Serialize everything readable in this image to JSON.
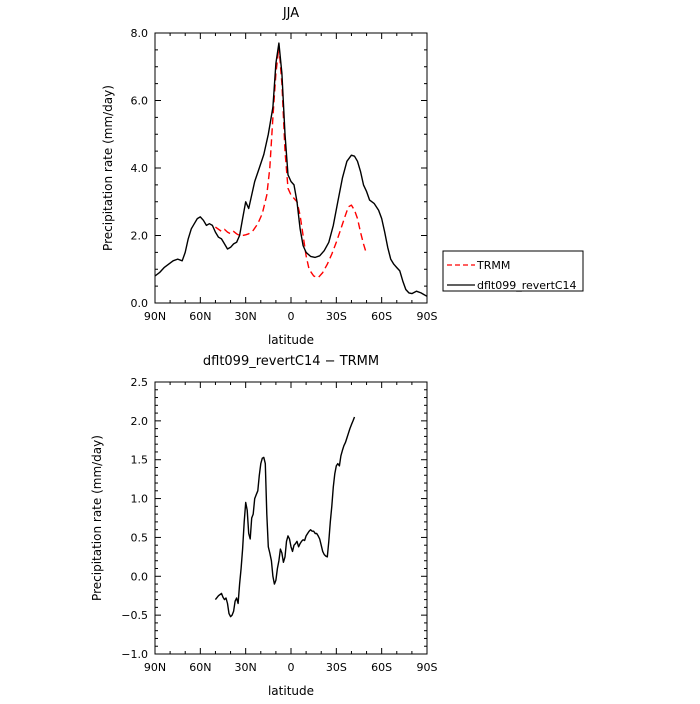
{
  "chart_data": [
    {
      "type": "line",
      "title": "JJA",
      "xlabel": "latitude",
      "ylabel": "Precipitation rate (mm/day)",
      "xlim": [
        90,
        -90
      ],
      "ylim": [
        0,
        8
      ],
      "x_tick_values": [
        90,
        60,
        30,
        0,
        -30,
        -60,
        -90
      ],
      "x_tick_labels": [
        "90N",
        "60N",
        "30N",
        "0",
        "30S",
        "60S",
        "90S"
      ],
      "y_tick_values": [
        0,
        2,
        4,
        6,
        8
      ],
      "y_tick_labels": [
        "0.0",
        "2.0",
        "4.0",
        "6.0",
        "8.0"
      ],
      "legend": {
        "placement": "right",
        "entries": [
          "TRMM",
          "dflt099_revertC14"
        ]
      },
      "series": [
        {
          "name": "TRMM",
          "color": "#ff0000",
          "style": "dashed",
          "points": [
            [
              50,
              2.25
            ],
            [
              46,
              2.12
            ],
            [
              44,
              2.18
            ],
            [
              42,
              2.1
            ],
            [
              40,
              2.05
            ],
            [
              38,
              2.12
            ],
            [
              36,
              2.05
            ],
            [
              34,
              2.0
            ],
            [
              32,
              2.0
            ],
            [
              30,
              2.02
            ],
            [
              28,
              2.05
            ],
            [
              25,
              2.15
            ],
            [
              22,
              2.35
            ],
            [
              19,
              2.65
            ],
            [
              16,
              3.2
            ],
            [
              14,
              4.0
            ],
            [
              12,
              5.5
            ],
            [
              10,
              6.8
            ],
            [
              8,
              7.6
            ],
            [
              6,
              6.5
            ],
            [
              4,
              4.5
            ],
            [
              2,
              3.4
            ],
            [
              0,
              3.2
            ],
            [
              -2,
              3.1
            ],
            [
              -4,
              3.0
            ],
            [
              -6,
              2.6
            ],
            [
              -8,
              2.0
            ],
            [
              -10,
              1.4
            ],
            [
              -12,
              1.0
            ],
            [
              -15,
              0.8
            ],
            [
              -18,
              0.75
            ],
            [
              -21,
              0.9
            ],
            [
              -24,
              1.15
            ],
            [
              -27,
              1.45
            ],
            [
              -30,
              1.8
            ],
            [
              -33,
              2.2
            ],
            [
              -36,
              2.6
            ],
            [
              -38,
              2.85
            ],
            [
              -40,
              2.9
            ],
            [
              -42,
              2.75
            ],
            [
              -44,
              2.5
            ],
            [
              -46,
              2.1
            ],
            [
              -48,
              1.75
            ],
            [
              -50,
              1.45
            ]
          ]
        },
        {
          "name": "dflt099_revertC14",
          "color": "#000000",
          "style": "solid",
          "points": [
            [
              90,
              0.8
            ],
            [
              87,
              0.9
            ],
            [
              84,
              1.05
            ],
            [
              81,
              1.15
            ],
            [
              78,
              1.25
            ],
            [
              75,
              1.3
            ],
            [
              72,
              1.25
            ],
            [
              70,
              1.5
            ],
            [
              68,
              1.9
            ],
            [
              66,
              2.2
            ],
            [
              64,
              2.35
            ],
            [
              62,
              2.5
            ],
            [
              60,
              2.55
            ],
            [
              58,
              2.45
            ],
            [
              56,
              2.3
            ],
            [
              54,
              2.35
            ],
            [
              52,
              2.3
            ],
            [
              50,
              2.1
            ],
            [
              48,
              1.95
            ],
            [
              46,
              1.9
            ],
            [
              44,
              1.75
            ],
            [
              42,
              1.6
            ],
            [
              40,
              1.65
            ],
            [
              38,
              1.75
            ],
            [
              36,
              1.8
            ],
            [
              34,
              2.0
            ],
            [
              32,
              2.5
            ],
            [
              30,
              3.0
            ],
            [
              28,
              2.8
            ],
            [
              26,
              3.2
            ],
            [
              24,
              3.6
            ],
            [
              21,
              4.0
            ],
            [
              18,
              4.4
            ],
            [
              15,
              5.0
            ],
            [
              12,
              5.8
            ],
            [
              10,
              7.1
            ],
            [
              8,
              7.7
            ],
            [
              6,
              6.8
            ],
            [
              4,
              5.0
            ],
            [
              2,
              3.8
            ],
            [
              0,
              3.6
            ],
            [
              -2,
              3.5
            ],
            [
              -4,
              3.0
            ],
            [
              -6,
              2.2
            ],
            [
              -8,
              1.7
            ],
            [
              -10,
              1.5
            ],
            [
              -13,
              1.38
            ],
            [
              -16,
              1.35
            ],
            [
              -19,
              1.4
            ],
            [
              -22,
              1.55
            ],
            [
              -25,
              1.8
            ],
            [
              -28,
              2.3
            ],
            [
              -31,
              3.0
            ],
            [
              -34,
              3.7
            ],
            [
              -37,
              4.2
            ],
            [
              -40,
              4.38
            ],
            [
              -42,
              4.35
            ],
            [
              -44,
              4.2
            ],
            [
              -46,
              3.9
            ],
            [
              -48,
              3.5
            ],
            [
              -50,
              3.3
            ],
            [
              -52,
              3.05
            ],
            [
              -55,
              2.95
            ],
            [
              -58,
              2.75
            ],
            [
              -60,
              2.5
            ],
            [
              -62,
              2.1
            ],
            [
              -64,
              1.65
            ],
            [
              -66,
              1.3
            ],
            [
              -68,
              1.15
            ],
            [
              -70,
              1.05
            ],
            [
              -72,
              0.95
            ],
            [
              -74,
              0.65
            ],
            [
              -76,
              0.4
            ],
            [
              -78,
              0.3
            ],
            [
              -80,
              0.28
            ],
            [
              -83,
              0.35
            ],
            [
              -86,
              0.3
            ],
            [
              -88,
              0.25
            ],
            [
              -90,
              0.2
            ]
          ]
        }
      ]
    },
    {
      "type": "line",
      "title": "dflt099_revertC14 − TRMM",
      "xlabel": "latitude",
      "ylabel": "Precipitation rate (mm/day)",
      "xlim": [
        90,
        -90
      ],
      "ylim": [
        -1,
        2.5
      ],
      "x_tick_values": [
        90,
        60,
        30,
        0,
        -30,
        -60,
        -90
      ],
      "x_tick_labels": [
        "90N",
        "60N",
        "30N",
        "0",
        "30S",
        "60S",
        "90S"
      ],
      "y_tick_values": [
        -1,
        -0.5,
        0,
        0.5,
        1,
        1.5,
        2,
        2.5
      ],
      "y_tick_labels": [
        "−1.0",
        "−0.5",
        "0.0",
        "0.5",
        "1.0",
        "1.5",
        "2.0",
        "2.5"
      ],
      "series": [
        {
          "color": "#000000",
          "style": "solid",
          "points": [
            [
              50,
              -0.3
            ],
            [
              48,
              -0.25
            ],
            [
              46,
              -0.22
            ],
            [
              45,
              -0.27
            ],
            [
              44,
              -0.3
            ],
            [
              43,
              -0.28
            ],
            [
              42,
              -0.35
            ],
            [
              41,
              -0.48
            ],
            [
              40,
              -0.52
            ],
            [
              39,
              -0.5
            ],
            [
              38,
              -0.45
            ],
            [
              37,
              -0.32
            ],
            [
              36,
              -0.28
            ],
            [
              35,
              -0.35
            ],
            [
              34,
              -0.1
            ],
            [
              33,
              0.1
            ],
            [
              32,
              0.35
            ],
            [
              31,
              0.7
            ],
            [
              30,
              0.95
            ],
            [
              29,
              0.85
            ],
            [
              28,
              0.55
            ],
            [
              27,
              0.48
            ],
            [
              26,
              0.75
            ],
            [
              25,
              0.8
            ],
            [
              24,
              1.0
            ],
            [
              23,
              1.05
            ],
            [
              22,
              1.1
            ],
            [
              21,
              1.3
            ],
            [
              20,
              1.45
            ],
            [
              19,
              1.52
            ],
            [
              18,
              1.53
            ],
            [
              17,
              1.45
            ],
            [
              16,
              0.8
            ],
            [
              15,
              0.38
            ],
            [
              14,
              0.3
            ],
            [
              13,
              0.2
            ],
            [
              12,
              0.0
            ],
            [
              11,
              -0.1
            ],
            [
              10,
              -0.05
            ],
            [
              9,
              0.1
            ],
            [
              8,
              0.2
            ],
            [
              7,
              0.35
            ],
            [
              6,
              0.3
            ],
            [
              5,
              0.18
            ],
            [
              4,
              0.25
            ],
            [
              3,
              0.45
            ],
            [
              2,
              0.52
            ],
            [
              1,
              0.48
            ],
            [
              0,
              0.38
            ],
            [
              -1,
              0.32
            ],
            [
              -2,
              0.4
            ],
            [
              -3,
              0.42
            ],
            [
              -4,
              0.45
            ],
            [
              -5,
              0.38
            ],
            [
              -6,
              0.42
            ],
            [
              -7,
              0.45
            ],
            [
              -8,
              0.47
            ],
            [
              -9,
              0.46
            ],
            [
              -10,
              0.52
            ],
            [
              -11,
              0.55
            ],
            [
              -12,
              0.58
            ],
            [
              -13,
              0.6
            ],
            [
              -14,
              0.58
            ],
            [
              -15,
              0.58
            ],
            [
              -16,
              0.55
            ],
            [
              -17,
              0.55
            ],
            [
              -18,
              0.52
            ],
            [
              -19,
              0.48
            ],
            [
              -20,
              0.4
            ],
            [
              -21,
              0.32
            ],
            [
              -22,
              0.28
            ],
            [
              -23,
              0.26
            ],
            [
              -24,
              0.25
            ],
            [
              -25,
              0.45
            ],
            [
              -26,
              0.7
            ],
            [
              -27,
              0.9
            ],
            [
              -28,
              1.15
            ],
            [
              -29,
              1.32
            ],
            [
              -30,
              1.42
            ],
            [
              -31,
              1.45
            ],
            [
              -32,
              1.42
            ],
            [
              -33,
              1.55
            ],
            [
              -34,
              1.62
            ],
            [
              -35,
              1.68
            ],
            [
              -36,
              1.72
            ],
            [
              -37,
              1.78
            ],
            [
              -38,
              1.84
            ],
            [
              -39,
              1.9
            ],
            [
              -40,
              1.95
            ],
            [
              -41,
              2.0
            ],
            [
              -42,
              2.05
            ]
          ]
        }
      ]
    }
  ]
}
